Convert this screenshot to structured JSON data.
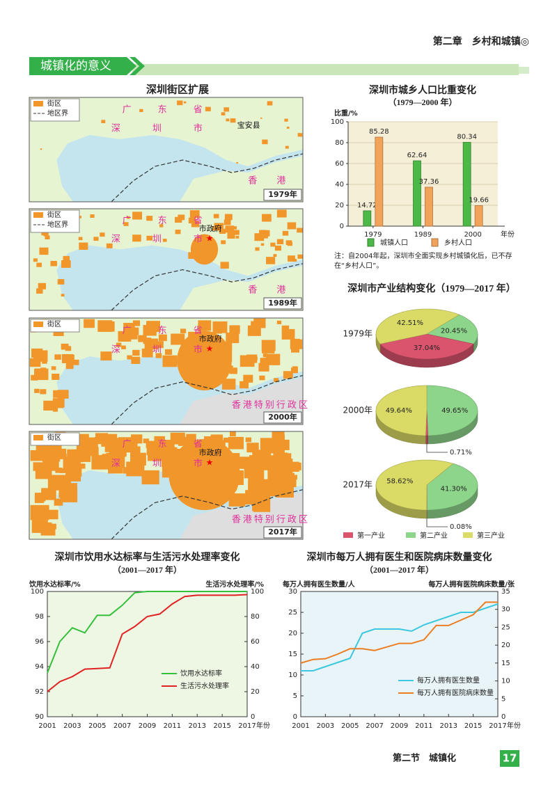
{
  "header": {
    "chapter": "第二章　乡村和城镇◎"
  },
  "section_title": "城镇化的意义",
  "map": {
    "title": "深圳街区扩展",
    "panels": [
      {
        "year": "1979年",
        "legend": [
          "街区",
          "地区界"
        ],
        "labels": [
          "广东省",
          "深圳市",
          "宝安县",
          "香港"
        ]
      },
      {
        "year": "1989年",
        "legend": [
          "街区",
          "地区界"
        ],
        "labels": [
          "广东省",
          "深圳市",
          "市政府",
          "香港"
        ]
      },
      {
        "year": "2000年",
        "legend": [
          "街区"
        ],
        "labels": [
          "广东省",
          "深圳市",
          "市政府",
          "香港特别行政区"
        ]
      },
      {
        "year": "2017年",
        "legend": [
          "街区"
        ],
        "labels": [
          "广东省",
          "深圳市",
          "市政府",
          "香港特别行政区"
        ]
      }
    ]
  },
  "chart_data": [
    {
      "type": "bar",
      "title": "深圳市城乡人口比重变化",
      "subtitle": "（1979—2000 年）",
      "y_label": "比重/%",
      "x_label": "年份",
      "categories": [
        "1979",
        "1989",
        "2000"
      ],
      "series": [
        {
          "name": "城镇人口",
          "color": "#4cb848",
          "values": [
            14.72,
            62.64,
            80.34
          ]
        },
        {
          "name": "乡村人口",
          "color": "#f2a35a",
          "values": [
            85.28,
            37.36,
            19.66
          ]
        }
      ],
      "ylim": [
        0,
        100
      ],
      "yticks": [
        0,
        20,
        40,
        60,
        80,
        100
      ],
      "grid": true,
      "note": "注：自2004年起，深圳市全面实现乡村城镇化后，已不存在“乡村人口”。"
    },
    {
      "type": "pie",
      "title": "深圳市产业结构变化（1979—2017 年）",
      "categories": [
        "第一产业",
        "第二产业",
        "第三产业"
      ],
      "colors": [
        "#d9546c",
        "#8dd58a",
        "#dada66"
      ],
      "pies": [
        {
          "label": "1979年",
          "values": [
            37.04,
            20.45,
            42.51
          ],
          "value_labels": [
            "37.04%",
            "20.45%",
            "42.51%"
          ]
        },
        {
          "label": "2000年",
          "values": [
            0.71,
            49.65,
            49.64
          ],
          "value_labels": [
            "0.71%",
            "49.65%",
            "49.64%"
          ]
        },
        {
          "label": "2017年",
          "values": [
            0.08,
            41.3,
            58.62
          ],
          "value_labels": [
            "0.08%",
            "41.30%",
            "58.62%"
          ]
        }
      ]
    },
    {
      "type": "line",
      "title": "深圳市饮用水达标率与生活污水处理率变化",
      "subtitle": "（2001—2017 年）",
      "y_label": "饮用水达标率/%",
      "y2_label": "生活污水处理率/%",
      "x_label": "年份",
      "x": [
        2001,
        2002,
        2003,
        2004,
        2005,
        2006,
        2007,
        2008,
        2009,
        2010,
        2011,
        2012,
        2013,
        2014,
        2015,
        2016,
        2017
      ],
      "xlim": [
        2001,
        2017
      ],
      "xticks": [
        2001,
        2003,
        2005,
        2007,
        2009,
        2011,
        2013,
        2015,
        2017
      ],
      "ylim": [
        90,
        100
      ],
      "yticks": [
        90,
        92,
        94,
        96,
        98,
        100
      ],
      "y2lim": [
        0,
        100
      ],
      "y2ticks": [
        0,
        20,
        40,
        60,
        80,
        100
      ],
      "series": [
        {
          "name": "饮用水达标率",
          "color": "#33c03a",
          "values": [
            93.5,
            96,
            97.1,
            96.7,
            98.1,
            98.1,
            98.9,
            99.9,
            100,
            100,
            100,
            100,
            100,
            100,
            100,
            100,
            100
          ]
        },
        {
          "name": "生活污水处理率",
          "color": "#e02222",
          "axis": "y2",
          "values": [
            20,
            28,
            32,
            38,
            38.5,
            39,
            66,
            72,
            80,
            82,
            90,
            96,
            97,
            97,
            97,
            97,
            97.5
          ]
        }
      ]
    },
    {
      "type": "line",
      "title": "深圳市每万人拥有医生和医院病床数量变化",
      "subtitle": "（2001—2017 年）",
      "y_label": "每万人拥有医生数量/人",
      "y2_label": "每万人拥有医院病床数量/张",
      "x_label": "年份",
      "x": [
        2001,
        2002,
        2003,
        2004,
        2005,
        2006,
        2007,
        2008,
        2009,
        2010,
        2011,
        2012,
        2013,
        2014,
        2015,
        2016,
        2017
      ],
      "xlim": [
        2001,
        2017
      ],
      "xticks": [
        2001,
        2003,
        2005,
        2007,
        2009,
        2011,
        2013,
        2015,
        2017
      ],
      "ylim": [
        0,
        30
      ],
      "yticks": [
        0,
        5,
        10,
        15,
        20,
        25,
        30
      ],
      "y2lim": [
        0,
        35
      ],
      "y2ticks": [
        0,
        5,
        10,
        15,
        20,
        25,
        30,
        35
      ],
      "series": [
        {
          "name": "每万人拥有医生数量",
          "color": "#3cc8e0",
          "values": [
            11,
            11,
            12,
            13,
            14,
            20,
            21,
            21,
            21,
            20.5,
            22,
            23,
            24,
            25,
            25,
            26,
            27
          ]
        },
        {
          "name": "每万人拥有医院病床数量",
          "color": "#ec7d22",
          "axis": "y2",
          "values": [
            15,
            16,
            16.2,
            17.5,
            19,
            19,
            18.5,
            19.5,
            20.5,
            20.5,
            21.5,
            25.5,
            25.5,
            27,
            28.5,
            32,
            32
          ]
        }
      ]
    }
  ],
  "footer": {
    "section": "第二节　城镇化",
    "page": "17"
  }
}
